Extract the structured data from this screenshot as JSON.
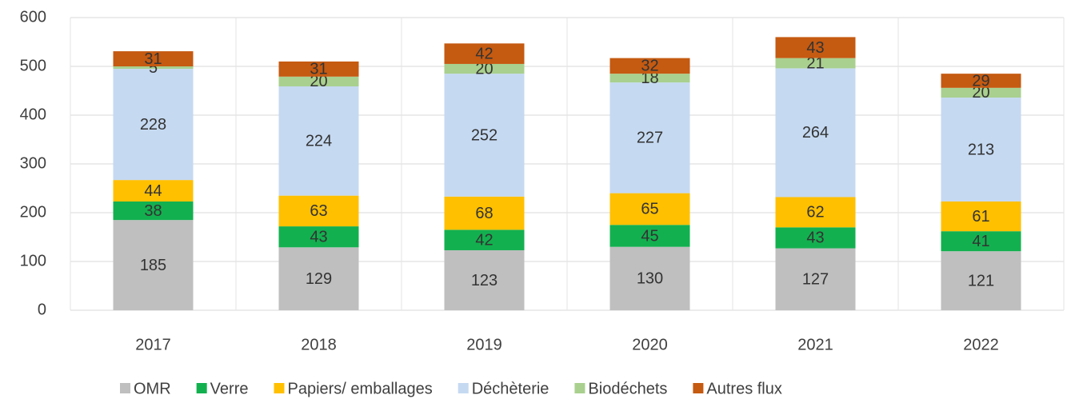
{
  "chart_data": {
    "type": "stacked_bar",
    "categories": [
      "2017",
      "2018",
      "2019",
      "2020",
      "2021",
      "2022"
    ],
    "series": [
      {
        "name": "OMR",
        "color": "#bfbfbf",
        "values": [
          185,
          129,
          123,
          130,
          127,
          121
        ]
      },
      {
        "name": "Verre",
        "color": "#13b04f",
        "values": [
          38,
          43,
          42,
          45,
          43,
          41
        ]
      },
      {
        "name": "Papiers/ emballages",
        "color": "#ffc000",
        "values": [
          44,
          63,
          68,
          65,
          62,
          61
        ]
      },
      {
        "name": "Déchèterie",
        "color": "#c5d9f1",
        "values": [
          228,
          224,
          252,
          227,
          264,
          213
        ]
      },
      {
        "name": "Biodéchets",
        "color": "#a9d08e",
        "values": [
          5,
          20,
          20,
          18,
          21,
          20
        ]
      },
      {
        "name": "Autres flux",
        "color": "#c55a11",
        "values": [
          31,
          31,
          42,
          32,
          43,
          29
        ]
      }
    ],
    "ylim": [
      0,
      600
    ],
    "yticks": [
      0,
      100,
      200,
      300,
      400,
      500,
      600
    ],
    "grid": true,
    "legend": "bottom"
  }
}
